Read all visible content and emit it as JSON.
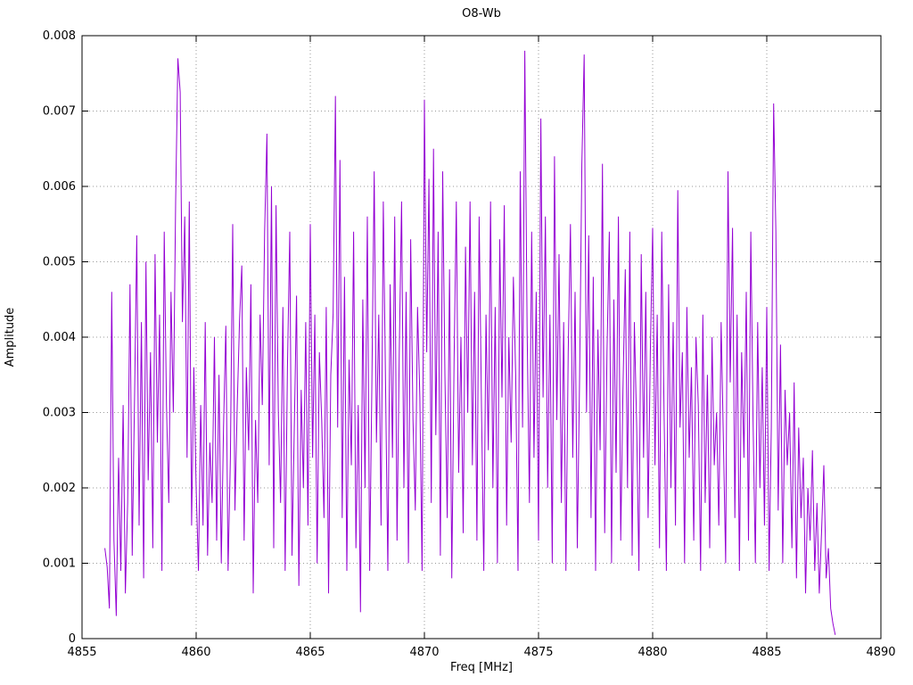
{
  "chart_data": {
    "type": "line",
    "title": "O8-Wb",
    "xlabel": "Freq [MHz]",
    "ylabel": "Amplitude",
    "xlim": [
      4855,
      4890
    ],
    "ylim": [
      0,
      0.008
    ],
    "grid": "dotted",
    "legend": "none",
    "line_color": "#9400d3",
    "grid_color": "#9a9a9a",
    "axis_color": "#000000",
    "background_color": "#ffffff",
    "xticks": {
      "values": [
        4855,
        4860,
        4865,
        4870,
        4875,
        4880,
        4885,
        4890
      ],
      "labels": [
        "4855",
        "4860",
        "4865",
        "4870",
        "4875",
        "4880",
        "4885",
        "4890"
      ]
    },
    "yticks": {
      "values": [
        0,
        0.001,
        0.002,
        0.003,
        0.004,
        0.005,
        0.006,
        0.007,
        0.008
      ],
      "labels": [
        "0",
        "0.001",
        "0.002",
        "0.003",
        "0.004",
        "0.005",
        "0.006",
        "0.007",
        "0.008"
      ]
    },
    "series": [
      {
        "name": "O8-Wb",
        "x_start": 4856.0,
        "x_step": 0.1,
        "y_scale": 1e-05,
        "y_values": [
          120,
          95,
          40,
          460,
          130,
          30,
          240,
          90,
          310,
          60,
          180,
          470,
          110,
          320,
          535,
          150,
          420,
          80,
          500,
          210,
          380,
          120,
          510,
          260,
          430,
          90,
          540,
          310,
          180,
          460,
          300,
          580,
          770,
          725,
          420,
          560,
          240,
          580,
          150,
          360,
          200,
          90,
          310,
          150,
          420,
          110,
          260,
          180,
          400,
          130,
          350,
          100,
          280,
          415,
          90,
          240,
          550,
          170,
          310,
          420,
          495,
          130,
          360,
          250,
          470,
          60,
          290,
          180,
          430,
          310,
          540,
          670,
          230,
          600,
          120,
          575,
          300,
          180,
          440,
          90,
          360,
          540,
          110,
          280,
          455,
          70,
          330,
          200,
          420,
          150,
          550,
          240,
          430,
          100,
          380,
          290,
          160,
          440,
          60,
          350,
          430,
          720,
          280,
          635,
          160,
          480,
          90,
          370,
          230,
          540,
          120,
          310,
          35,
          450,
          200,
          560,
          90,
          340,
          620,
          260,
          430,
          150,
          580,
          330,
          90,
          470,
          240,
          560,
          130,
          380,
          580,
          200,
          460,
          100,
          530,
          290,
          170,
          440,
          320,
          90,
          715,
          380,
          610,
          180,
          650,
          270,
          540,
          110,
          620,
          350,
          160,
          490,
          80,
          370,
          580,
          220,
          400,
          140,
          520,
          300,
          580,
          230,
          460,
          130,
          560,
          310,
          90,
          430,
          250,
          580,
          200,
          440,
          100,
          530,
          320,
          575,
          150,
          400,
          260,
          480,
          350,
          90,
          620,
          280,
          780,
          410,
          180,
          540,
          240,
          460,
          130,
          690,
          320,
          560,
          200,
          430,
          100,
          640,
          290,
          510,
          180,
          420,
          90,
          380,
          550,
          240,
          460,
          120,
          350,
          630,
          775,
          300,
          535,
          160,
          480,
          90,
          410,
          250,
          630,
          140,
          380,
          540,
          100,
          450,
          220,
          560,
          130,
          330,
          490,
          200,
          540,
          110,
          420,
          280,
          90,
          510,
          240,
          460,
          160,
          380,
          545,
          230,
          430,
          120,
          540,
          300,
          90,
          470,
          200,
          420,
          150,
          595,
          280,
          380,
          100,
          440,
          240,
          360,
          130,
          400,
          310,
          90,
          430,
          180,
          350,
          120,
          400,
          230,
          300,
          150,
          420,
          260,
          100,
          620,
          340,
          545,
          160,
          430,
          90,
          380,
          240,
          460,
          130,
          540,
          290,
          100,
          420,
          200,
          360,
          150,
          440,
          90,
          280,
          710,
          540,
          170,
          390,
          100,
          330,
          230,
          300,
          120,
          340,
          80,
          280,
          160,
          240,
          60,
          200,
          130,
          250,
          90,
          180,
          60,
          140,
          230,
          80,
          120,
          40,
          20,
          5
        ]
      }
    ]
  }
}
